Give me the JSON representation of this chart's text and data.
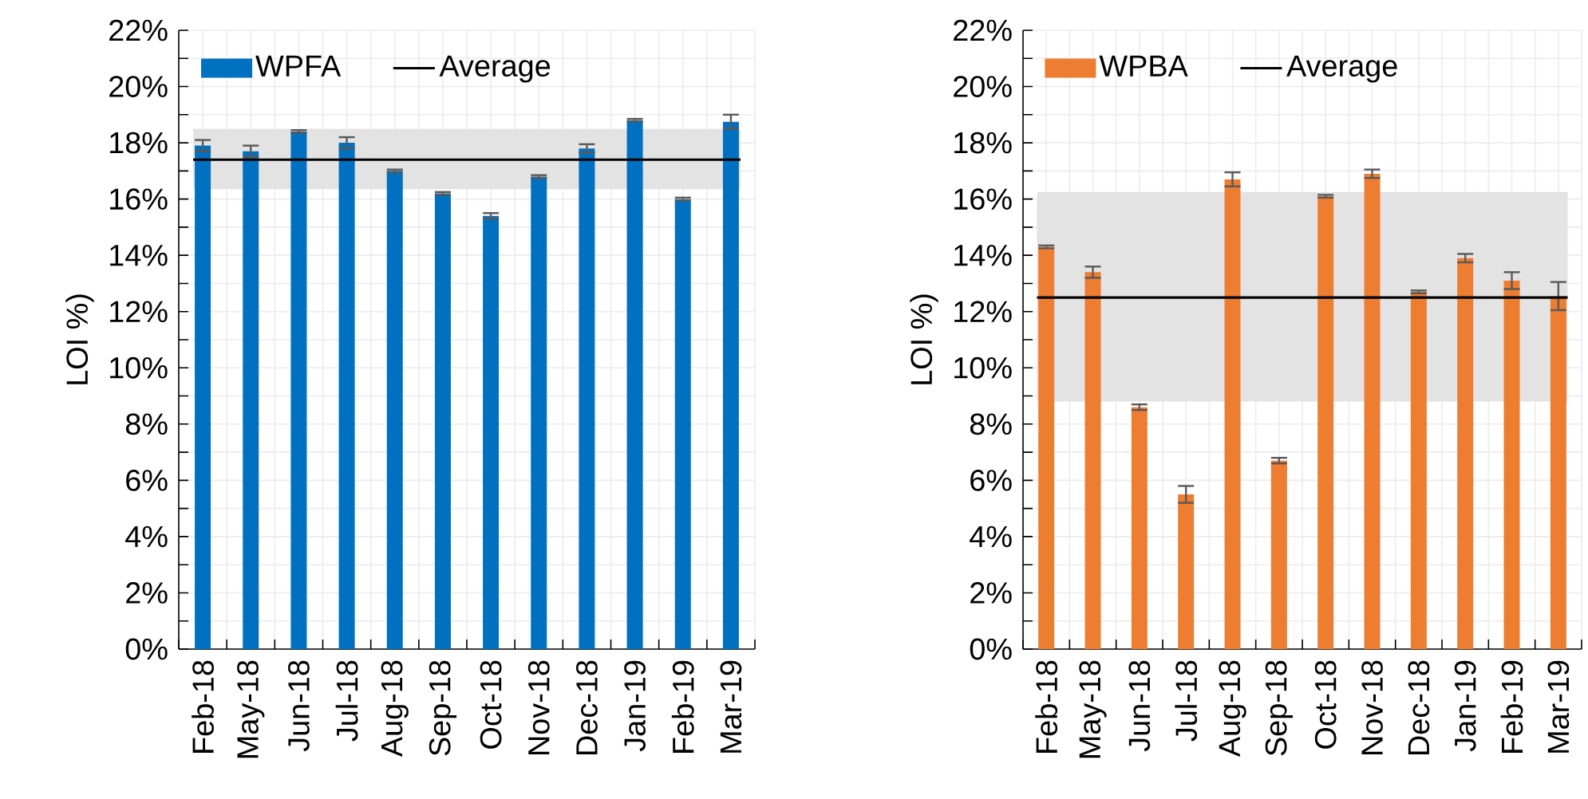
{
  "chart_data": [
    {
      "type": "bar",
      "ylabel": "LOI %)",
      "categories": [
        "Feb-18",
        "May-18",
        "Jun-18",
        "Jul-18",
        "Aug-18",
        "Sep-18",
        "Oct-18",
        "Nov-18",
        "Dec-18",
        "Jan-19",
        "Feb-19",
        "Mar-19"
      ],
      "series": [
        {
          "name": "WPFA",
          "color": "#0070c0",
          "values": [
            17.9,
            17.7,
            18.4,
            18.0,
            17.0,
            16.2,
            15.4,
            16.8,
            17.8,
            18.8,
            16.0,
            18.75
          ],
          "errors": [
            0.2,
            0.2,
            0.05,
            0.2,
            0.05,
            0.05,
            0.1,
            0.05,
            0.15,
            0.05,
            0.05,
            0.25
          ]
        }
      ],
      "ref_lines": [
        {
          "axis": "y",
          "value": 17.4,
          "label": "Average",
          "color": "#000000"
        }
      ],
      "bands": [
        {
          "axis": "y",
          "from": 16.35,
          "to": 18.5,
          "color": "#e3e3e3"
        }
      ],
      "ylim": [
        0,
        22
      ],
      "yticks": [
        {
          "value": 0,
          "label": "0%"
        },
        {
          "value": 2,
          "label": "2%"
        },
        {
          "value": 4,
          "label": "4%"
        },
        {
          "value": 6,
          "label": "6%"
        },
        {
          "value": 8,
          "label": "8%"
        },
        {
          "value": 10,
          "label": "10%"
        },
        {
          "value": 12,
          "label": "12%"
        },
        {
          "value": 14,
          "label": "14%"
        },
        {
          "value": 16,
          "label": "16%"
        },
        {
          "value": 18,
          "label": "18%"
        },
        {
          "value": 20,
          "label": "20%"
        },
        {
          "value": 22,
          "label": "22%"
        }
      ],
      "grid": true,
      "legend": "top"
    },
    {
      "type": "bar",
      "ylabel": "LOI %)",
      "categories": [
        "Feb-18",
        "May-18",
        "Jun-18",
        "Jul-18",
        "Aug-18",
        "Sep-18",
        "Oct-18",
        "Nov-18",
        "Dec-18",
        "Jan-19",
        "Feb-19",
        "Mar-19"
      ],
      "series": [
        {
          "name": "WPBA",
          "color": "#ed7d31",
          "values": [
            14.3,
            13.4,
            8.6,
            5.5,
            16.7,
            6.7,
            16.1,
            16.9,
            12.7,
            13.9,
            13.1,
            12.55
          ],
          "errors": [
            0.05,
            0.2,
            0.1,
            0.3,
            0.25,
            0.1,
            0.05,
            0.15,
            0.05,
            0.15,
            0.3,
            0.5
          ]
        }
      ],
      "ref_lines": [
        {
          "axis": "y",
          "value": 12.5,
          "label": "Average",
          "color": "#000000"
        }
      ],
      "bands": [
        {
          "axis": "y",
          "from": 8.8,
          "to": 16.25,
          "color": "#e3e3e3"
        }
      ],
      "ylim": [
        0,
        22
      ],
      "yticks": [
        {
          "value": 0,
          "label": "0%"
        },
        {
          "value": 2,
          "label": "2%"
        },
        {
          "value": 4,
          "label": "4%"
        },
        {
          "value": 6,
          "label": "6%"
        },
        {
          "value": 8,
          "label": "8%"
        },
        {
          "value": 10,
          "label": "10%"
        },
        {
          "value": 12,
          "label": "12%"
        },
        {
          "value": 14,
          "label": "14%"
        },
        {
          "value": 16,
          "label": "16%"
        },
        {
          "value": 18,
          "label": "18%"
        },
        {
          "value": 20,
          "label": "20%"
        },
        {
          "value": 22,
          "label": "22%"
        }
      ],
      "grid": true,
      "legend": "top"
    }
  ]
}
